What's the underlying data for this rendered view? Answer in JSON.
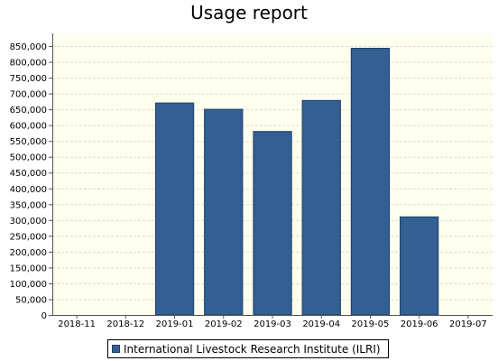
{
  "chart_data": {
    "type": "bar",
    "title": "Usage report",
    "xlabel": "",
    "ylabel": "",
    "categories": [
      "2018-11",
      "2018-12",
      "2019-01",
      "2019-02",
      "2019-03",
      "2019-04",
      "2019-05",
      "2019-06",
      "2019-07"
    ],
    "series": [
      {
        "name": "International Livestock Research Institute (ILRI)",
        "values": [
          0,
          0,
          670000,
          650000,
          580000,
          678000,
          843000,
          310000,
          0
        ]
      }
    ],
    "ylim": [
      0,
      890000
    ],
    "yticks": [
      0,
      50000,
      100000,
      150000,
      200000,
      250000,
      300000,
      350000,
      400000,
      450000,
      500000,
      550000,
      600000,
      650000,
      700000,
      750000,
      800000,
      850000
    ],
    "ytick_labels": [
      "0",
      "50,000",
      "100,000",
      "150,000",
      "200,000",
      "250,000",
      "300,000",
      "350,000",
      "400,000",
      "450,000",
      "500,000",
      "550,000",
      "600,000",
      "650,000",
      "700,000",
      "750,000",
      "800,000",
      "850,000"
    ],
    "grid": true,
    "legend_position": "bottom-center",
    "colors": {
      "bar": "#335f93",
      "bar_edge": "#1f3f66",
      "plot_background": "#fffff0",
      "grid": "#dcdcc8"
    }
  }
}
